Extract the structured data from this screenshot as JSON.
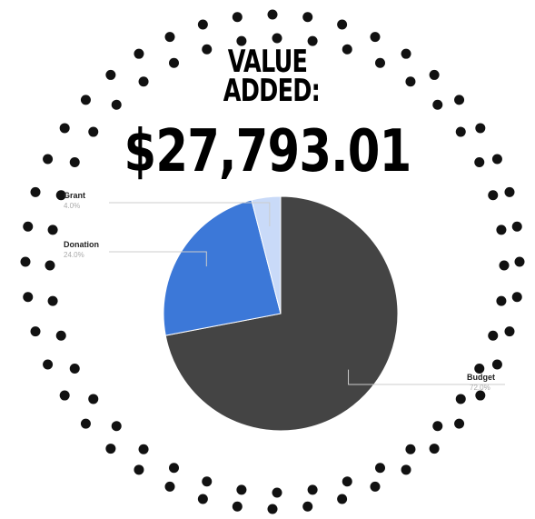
{
  "chart_data": {
    "type": "pie",
    "title": "VALUE ADDED:",
    "subtitle": "$27,793.01",
    "categories": [
      "Budget",
      "Donation",
      "Grant"
    ],
    "values": [
      72,
      24,
      4
    ],
    "value_labels": [
      "72.0%",
      "24.0%",
      "4.0%"
    ],
    "colors": [
      "#444444",
      "#3c78d8",
      "#c9daf8"
    ]
  }
}
